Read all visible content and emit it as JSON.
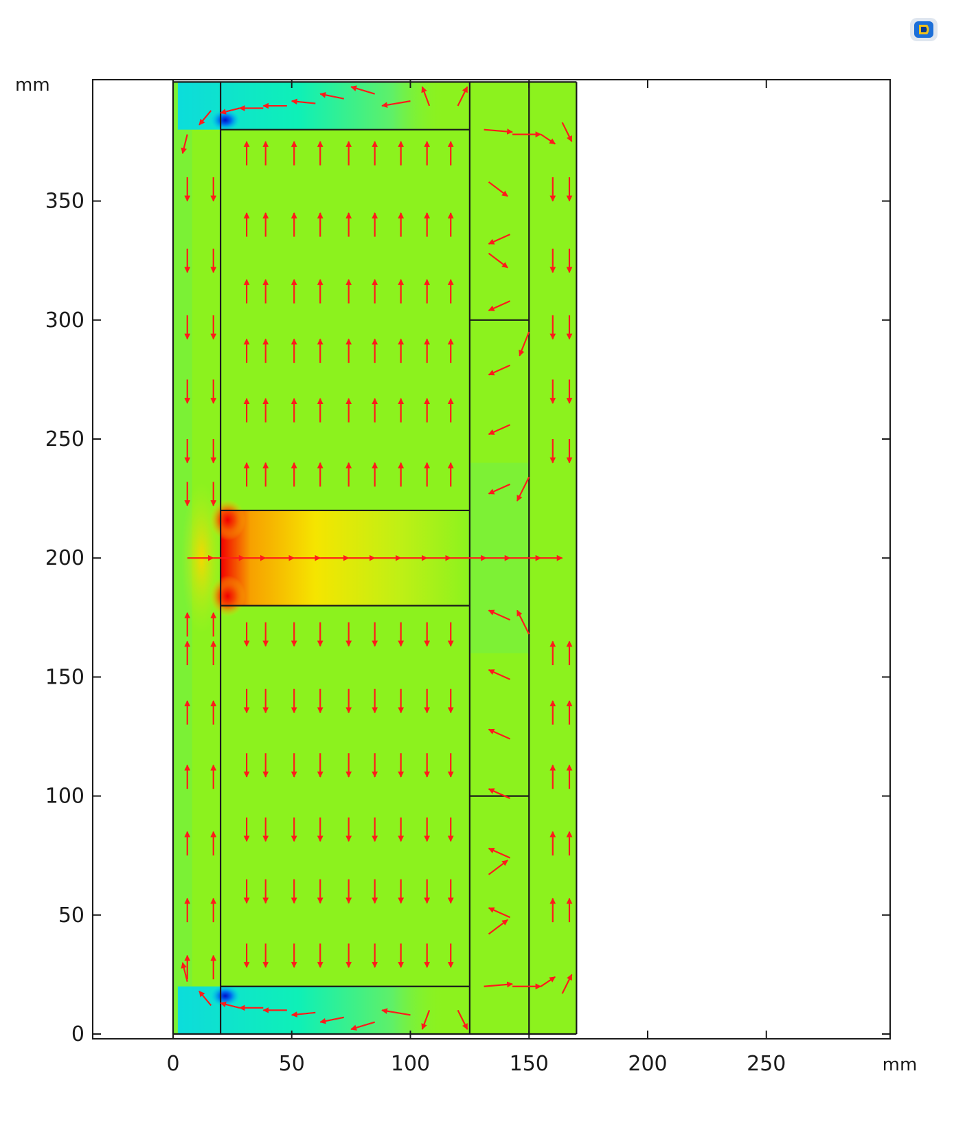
{
  "chart_data": {
    "type": "heatmap",
    "title": "",
    "xlabel": "",
    "ylabel": "",
    "x_unit": "mm",
    "y_unit": "mm",
    "xlim": [
      -35,
      305
    ],
    "ylim": [
      -2,
      402
    ],
    "x_ticks": [
      0,
      50,
      100,
      150,
      200,
      250
    ],
    "y_ticks": [
      0,
      50,
      100,
      150,
      200,
      250,
      300,
      350
    ],
    "grid": false,
    "colors": {
      "field_base": "#8cf21e",
      "hot": "#f20000",
      "warm": "#f5e000",
      "cool": "#00f0e0",
      "cold": "#0010c8",
      "arrow": "#ff1a1a",
      "boundary": "#1a1a1a"
    },
    "domain": {
      "x": [
        0,
        170
      ],
      "y": [
        0,
        400
      ]
    },
    "regions": [
      {
        "name": "core-left-column",
        "x": [
          0,
          20
        ],
        "y": [
          0,
          400
        ]
      },
      {
        "name": "coil-upper",
        "x": [
          20,
          125
        ],
        "y": [
          220,
          380
        ]
      },
      {
        "name": "air-gap",
        "x": [
          20,
          125
        ],
        "y": [
          180,
          220
        ]
      },
      {
        "name": "coil-lower",
        "x": [
          20,
          125
        ],
        "y": [
          20,
          180
        ]
      },
      {
        "name": "outer-column",
        "x": [
          125,
          150
        ],
        "y": [
          0,
          400
        ]
      },
      {
        "name": "outer-shell",
        "x": [
          150,
          170
        ],
        "y": [
          0,
          400
        ]
      }
    ],
    "boundary_lines": [
      {
        "from": [
          0,
          0
        ],
        "to": [
          0,
          400
        ]
      },
      {
        "from": [
          20,
          0
        ],
        "to": [
          20,
          400
        ]
      },
      {
        "from": [
          125,
          0
        ],
        "to": [
          125,
          400
        ]
      },
      {
        "from": [
          150,
          0
        ],
        "to": [
          150,
          400
        ]
      },
      {
        "from": [
          170,
          0
        ],
        "to": [
          170,
          400
        ]
      },
      {
        "from": [
          0,
          0
        ],
        "to": [
          170,
          0
        ]
      },
      {
        "from": [
          0,
          400
        ],
        "to": [
          170,
          400
        ]
      },
      {
        "from": [
          20,
          380
        ],
        "to": [
          125,
          380
        ]
      },
      {
        "from": [
          20,
          220
        ],
        "to": [
          125,
          220
        ]
      },
      {
        "from": [
          20,
          180
        ],
        "to": [
          125,
          180
        ]
      },
      {
        "from": [
          20,
          20
        ],
        "to": [
          125,
          20
        ]
      },
      {
        "from": [
          125,
          300
        ],
        "to": [
          150,
          300
        ]
      },
      {
        "from": [
          125,
          100
        ],
        "to": [
          150,
          100
        ]
      }
    ],
    "arrow_columns_inner": [
      31,
      39,
      51,
      62,
      74,
      85,
      96,
      107,
      117
    ],
    "arrow_rows_upper": [
      370,
      340,
      312,
      287,
      262,
      235
    ],
    "arrow_rows_lower": [
      168,
      140,
      113,
      86,
      60,
      33
    ],
    "arrow_columns_left": [
      6,
      17
    ],
    "arrow_rows_left_down": [
      355,
      325,
      297,
      270,
      245
    ],
    "arrow_rows_left_up": [
      160,
      135,
      108,
      80,
      52,
      28
    ],
    "arrow_columns_right": [
      160,
      167
    ],
    "arrow_rows_right": [
      355,
      325,
      297,
      270,
      245,
      160,
      135,
      108,
      80,
      52
    ],
    "gap_arrow_x": [
      6,
      17,
      30,
      39,
      51,
      62,
      74,
      85,
      96,
      107,
      117,
      132,
      142,
      155,
      164
    ]
  }
}
